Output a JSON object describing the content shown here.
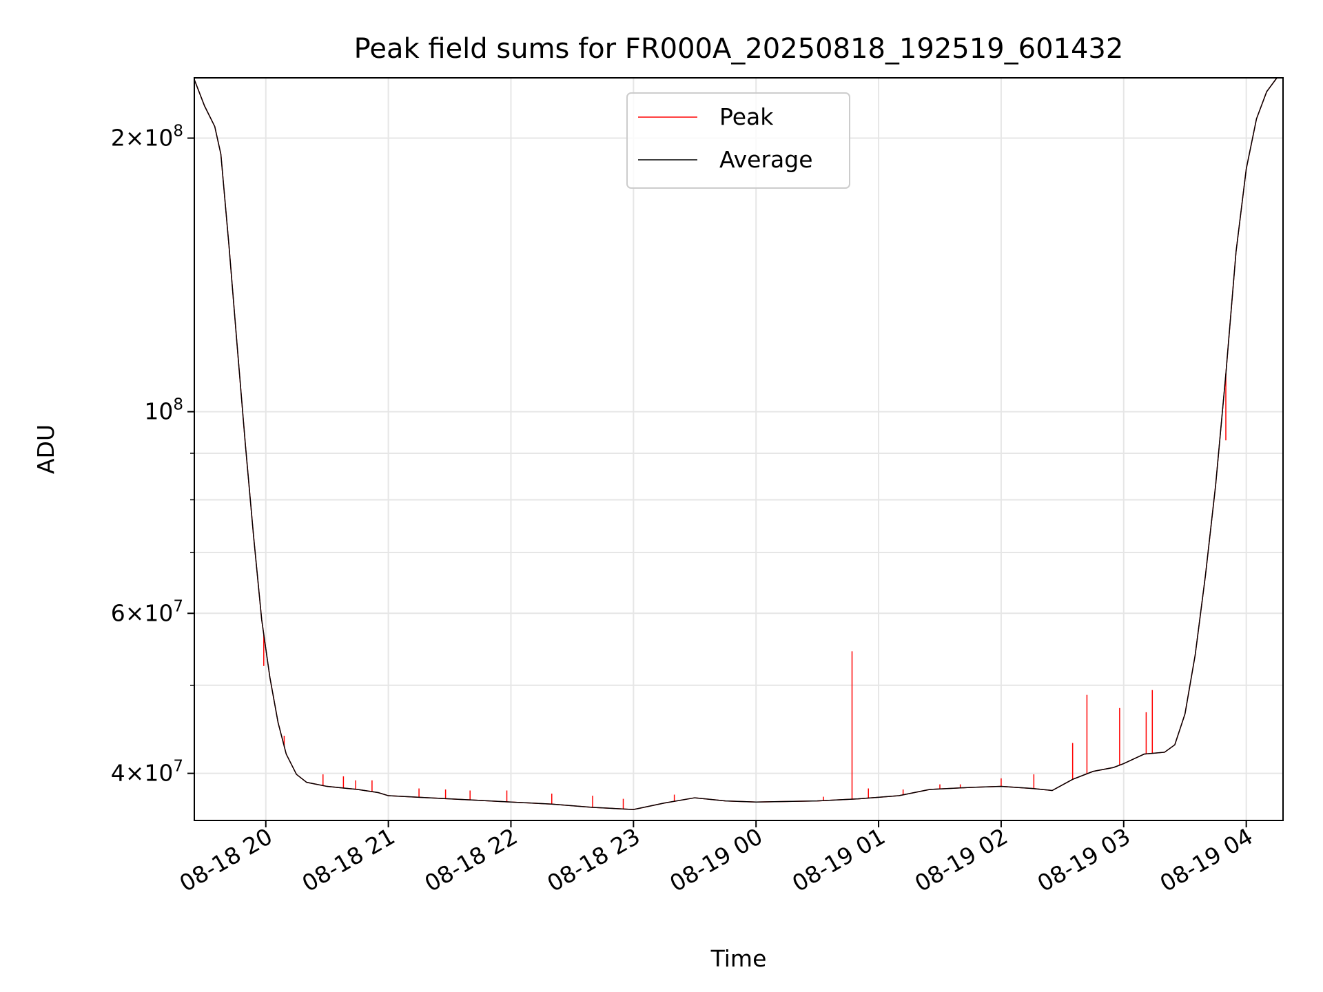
{
  "chart_data": {
    "type": "line",
    "title": "Peak field sums for FR000A_20250818_192519_601432",
    "xlabel": "Time",
    "ylabel": "ADU",
    "yscale": "log",
    "xlim": [
      "2025-08-18 19:25",
      "2025-08-19 04:18"
    ],
    "ylim": [
      35500000,
      233000000
    ],
    "grid": true,
    "legend_position": "upper center",
    "x_ticks": [
      {
        "t": "2025-08-18 20:00",
        "label": "08-18 20"
      },
      {
        "t": "2025-08-18 21:00",
        "label": "08-18 21"
      },
      {
        "t": "2025-08-18 22:00",
        "label": "08-18 22"
      },
      {
        "t": "2025-08-18 23:00",
        "label": "08-18 23"
      },
      {
        "t": "2025-08-19 00:00",
        "label": "08-19 00"
      },
      {
        "t": "2025-08-19 01:00",
        "label": "08-19 01"
      },
      {
        "t": "2025-08-19 02:00",
        "label": "08-19 02"
      },
      {
        "t": "2025-08-19 03:00",
        "label": "08-19 03"
      },
      {
        "t": "2025-08-19 04:00",
        "label": "08-19 04"
      }
    ],
    "y_ticks": [
      {
        "v": 40000000,
        "base": "4×10",
        "exp": "7"
      },
      {
        "v": 60000000,
        "base": "6×10",
        "exp": "7"
      },
      {
        "v": 100000000,
        "base": "10",
        "exp": "8"
      },
      {
        "v": 200000000,
        "base": "2×10",
        "exp": "8"
      }
    ],
    "y_minor_ticks": [
      50000000,
      70000000,
      80000000,
      90000000
    ],
    "series": [
      {
        "name": "Average",
        "color": "#000000",
        "points": [
          [
            "2025-08-18 19:25",
            232000000
          ],
          [
            "2025-08-18 19:30",
            217000000
          ],
          [
            "2025-08-18 19:35",
            206000000
          ],
          [
            "2025-08-18 19:38",
            192000000
          ],
          [
            "2025-08-18 19:42",
            152000000
          ],
          [
            "2025-08-18 19:46",
            118000000
          ],
          [
            "2025-08-18 19:50",
            92000000
          ],
          [
            "2025-08-18 19:54",
            73000000
          ],
          [
            "2025-08-18 19:58",
            59000000
          ],
          [
            "2025-08-18 20:02",
            51000000
          ],
          [
            "2025-08-18 20:06",
            45500000
          ],
          [
            "2025-08-18 20:10",
            42000000
          ],
          [
            "2025-08-18 20:15",
            39900000
          ],
          [
            "2025-08-18 20:20",
            39100000
          ],
          [
            "2025-08-18 20:30",
            38700000
          ],
          [
            "2025-08-18 20:45",
            38400000
          ],
          [
            "2025-08-18 20:55",
            38100000
          ],
          [
            "2025-08-18 21:00",
            37800000
          ],
          [
            "2025-08-18 21:20",
            37600000
          ],
          [
            "2025-08-18 21:40",
            37400000
          ],
          [
            "2025-08-18 22:00",
            37200000
          ],
          [
            "2025-08-18 22:20",
            37000000
          ],
          [
            "2025-08-18 22:40",
            36700000
          ],
          [
            "2025-08-18 23:00",
            36500000
          ],
          [
            "2025-08-18 23:15",
            37100000
          ],
          [
            "2025-08-18 23:30",
            37600000
          ],
          [
            "2025-08-18 23:45",
            37300000
          ],
          [
            "2025-08-19 00:00",
            37200000
          ],
          [
            "2025-08-19 00:30",
            37300000
          ],
          [
            "2025-08-19 00:50",
            37500000
          ],
          [
            "2025-08-19 01:10",
            37800000
          ],
          [
            "2025-08-19 01:25",
            38400000
          ],
          [
            "2025-08-19 01:45",
            38600000
          ],
          [
            "2025-08-19 02:00",
            38700000
          ],
          [
            "2025-08-19 02:15",
            38500000
          ],
          [
            "2025-08-19 02:25",
            38300000
          ],
          [
            "2025-08-19 02:35",
            39400000
          ],
          [
            "2025-08-19 02:45",
            40200000
          ],
          [
            "2025-08-19 02:55",
            40600000
          ],
          [
            "2025-08-19 03:00",
            41000000
          ],
          [
            "2025-08-19 03:10",
            42000000
          ],
          [
            "2025-08-19 03:20",
            42200000
          ],
          [
            "2025-08-19 03:25",
            43000000
          ],
          [
            "2025-08-19 03:30",
            46500000
          ],
          [
            "2025-08-19 03:35",
            54000000
          ],
          [
            "2025-08-19 03:40",
            66000000
          ],
          [
            "2025-08-19 03:45",
            83000000
          ],
          [
            "2025-08-19 03:50",
            110000000
          ],
          [
            "2025-08-19 03:55",
            150000000
          ],
          [
            "2025-08-19 04:00",
            185000000
          ],
          [
            "2025-08-19 04:05",
            210000000
          ],
          [
            "2025-08-19 04:10",
            225000000
          ],
          [
            "2025-08-19 04:15",
            233000000
          ]
        ]
      },
      {
        "name": "Peak",
        "color": "#ff0000",
        "spikes": [
          [
            "2025-08-18 19:59",
            52500000
          ],
          [
            "2025-08-18 20:09",
            44000000
          ],
          [
            "2025-08-18 20:28",
            39900000
          ],
          [
            "2025-08-18 20:38",
            39700000
          ],
          [
            "2025-08-18 20:44",
            39300000
          ],
          [
            "2025-08-18 20:52",
            39300000
          ],
          [
            "2025-08-18 21:15",
            38500000
          ],
          [
            "2025-08-18 21:28",
            38400000
          ],
          [
            "2025-08-18 21:40",
            38300000
          ],
          [
            "2025-08-18 21:58",
            38300000
          ],
          [
            "2025-08-18 22:20",
            38000000
          ],
          [
            "2025-08-18 22:40",
            37800000
          ],
          [
            "2025-08-18 22:55",
            37500000
          ],
          [
            "2025-08-18 23:20",
            37900000
          ],
          [
            "2025-08-19 00:33",
            37700000
          ],
          [
            "2025-08-19 00:47",
            54500000
          ],
          [
            "2025-08-19 00:55",
            38500000
          ],
          [
            "2025-08-19 01:12",
            38400000
          ],
          [
            "2025-08-19 01:30",
            38900000
          ],
          [
            "2025-08-19 01:40",
            38900000
          ],
          [
            "2025-08-19 02:00",
            39500000
          ],
          [
            "2025-08-19 02:16",
            39900000
          ],
          [
            "2025-08-19 02:35",
            43200000
          ],
          [
            "2025-08-19 02:42",
            48800000
          ],
          [
            "2025-08-19 02:58",
            47200000
          ],
          [
            "2025-08-19 03:11",
            46700000
          ],
          [
            "2025-08-19 03:14",
            49400000
          ],
          [
            "2025-08-19 03:50",
            93000000
          ]
        ]
      }
    ]
  }
}
